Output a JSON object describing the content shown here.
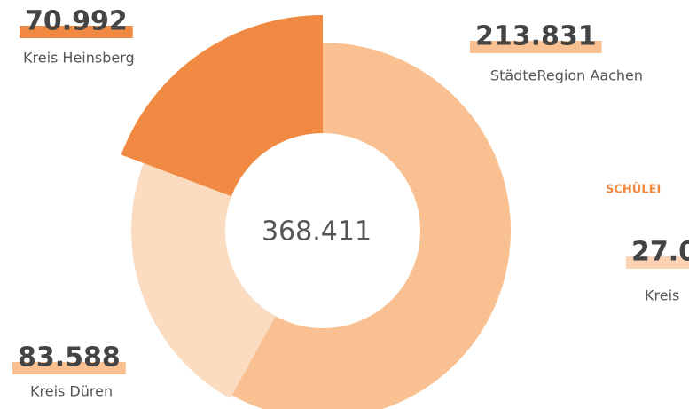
{
  "chart_data": {
    "type": "pie",
    "categories": [
      "StädteRegion Aachen",
      "Kreis Düren",
      "Kreis Heinsberg"
    ],
    "values": [
      213831,
      83588,
      70992
    ],
    "value_labels": [
      "213.831",
      "83.588",
      "70.992"
    ],
    "colors": [
      "#f9c191",
      "#fbdcc0",
      "#f08a42"
    ],
    "center_label": {
      "value": 368411,
      "label": "368.411"
    },
    "annotations": [
      "SCHÜLEI",
      "27.0",
      "Kreis"
    ]
  }
}
